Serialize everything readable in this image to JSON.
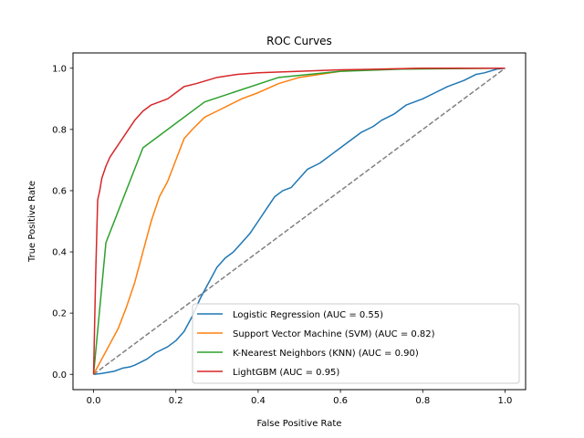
{
  "chart_data": {
    "type": "line",
    "title": "ROC Curves",
    "xlabel": "False Positive Rate",
    "ylabel": "True Positive Rate",
    "xlim": [
      -0.05,
      1.05
    ],
    "ylim": [
      -0.05,
      1.05
    ],
    "x_ticks": [
      "0.0",
      "0.2",
      "0.4",
      "0.6",
      "0.8",
      "1.0"
    ],
    "y_ticks": [
      "0.0",
      "0.2",
      "0.4",
      "0.6",
      "0.8",
      "1.0"
    ],
    "grid": false,
    "legend_position": "lower right",
    "reference_line": {
      "x": [
        0,
        1
      ],
      "y": [
        0,
        1
      ],
      "color": "#808080",
      "style": "dashed"
    },
    "series": [
      {
        "name": "Logistic Regression (AUC = 0.55)",
        "color": "#1f77b4",
        "x": [
          0,
          0.02,
          0.05,
          0.07,
          0.09,
          0.1,
          0.13,
          0.15,
          0.18,
          0.2,
          0.22,
          0.24,
          0.26,
          0.28,
          0.3,
          0.32,
          0.34,
          0.36,
          0.38,
          0.4,
          0.42,
          0.44,
          0.46,
          0.48,
          0.5,
          0.52,
          0.55,
          0.58,
          0.6,
          0.62,
          0.65,
          0.68,
          0.7,
          0.73,
          0.76,
          0.8,
          0.83,
          0.86,
          0.9,
          0.93,
          0.95,
          0.98,
          1.0
        ],
        "y": [
          0,
          0.003,
          0.01,
          0.02,
          0.025,
          0.03,
          0.05,
          0.07,
          0.09,
          0.11,
          0.14,
          0.19,
          0.25,
          0.3,
          0.35,
          0.38,
          0.4,
          0.43,
          0.46,
          0.5,
          0.54,
          0.58,
          0.6,
          0.61,
          0.64,
          0.67,
          0.69,
          0.72,
          0.74,
          0.76,
          0.79,
          0.81,
          0.83,
          0.85,
          0.88,
          0.9,
          0.92,
          0.94,
          0.96,
          0.98,
          0.985,
          0.997,
          1.0
        ]
      },
      {
        "name": "Support Vector Machine (SVM) (AUC = 0.82)",
        "color": "#ff7f0e",
        "x": [
          0,
          0.02,
          0.04,
          0.06,
          0.08,
          0.1,
          0.12,
          0.14,
          0.16,
          0.18,
          0.2,
          0.22,
          0.24,
          0.27,
          0.3,
          0.33,
          0.36,
          0.4,
          0.45,
          0.5,
          0.55,
          0.6,
          0.65,
          0.7,
          0.8,
          0.9,
          1.0
        ],
        "y": [
          0,
          0.05,
          0.1,
          0.15,
          0.22,
          0.3,
          0.4,
          0.5,
          0.58,
          0.63,
          0.7,
          0.77,
          0.8,
          0.84,
          0.86,
          0.88,
          0.9,
          0.92,
          0.95,
          0.97,
          0.98,
          0.99,
          0.995,
          0.997,
          1.0,
          1.0,
          1.0
        ]
      },
      {
        "name": "K-Nearest Neighbors (KNN) (AUC = 0.90)",
        "color": "#2ca02c",
        "x": [
          0,
          0.03,
          0.12,
          0.27,
          0.45,
          0.6,
          0.75,
          1.0
        ],
        "y": [
          0,
          0.43,
          0.74,
          0.89,
          0.97,
          0.99,
          0.997,
          1.0
        ]
      },
      {
        "name": "LightGBM (AUC = 0.95)",
        "color": "#d62728",
        "x": [
          0,
          0.005,
          0.01,
          0.015,
          0.02,
          0.03,
          0.04,
          0.05,
          0.06,
          0.08,
          0.1,
          0.12,
          0.14,
          0.16,
          0.18,
          0.2,
          0.22,
          0.25,
          0.3,
          0.35,
          0.4,
          0.5,
          0.6,
          0.7,
          0.8,
          1.0
        ],
        "y": [
          0,
          0.32,
          0.57,
          0.6,
          0.64,
          0.68,
          0.71,
          0.73,
          0.75,
          0.79,
          0.83,
          0.86,
          0.88,
          0.89,
          0.9,
          0.92,
          0.94,
          0.95,
          0.97,
          0.98,
          0.985,
          0.99,
          0.995,
          0.997,
          1.0,
          1.0
        ]
      }
    ]
  }
}
